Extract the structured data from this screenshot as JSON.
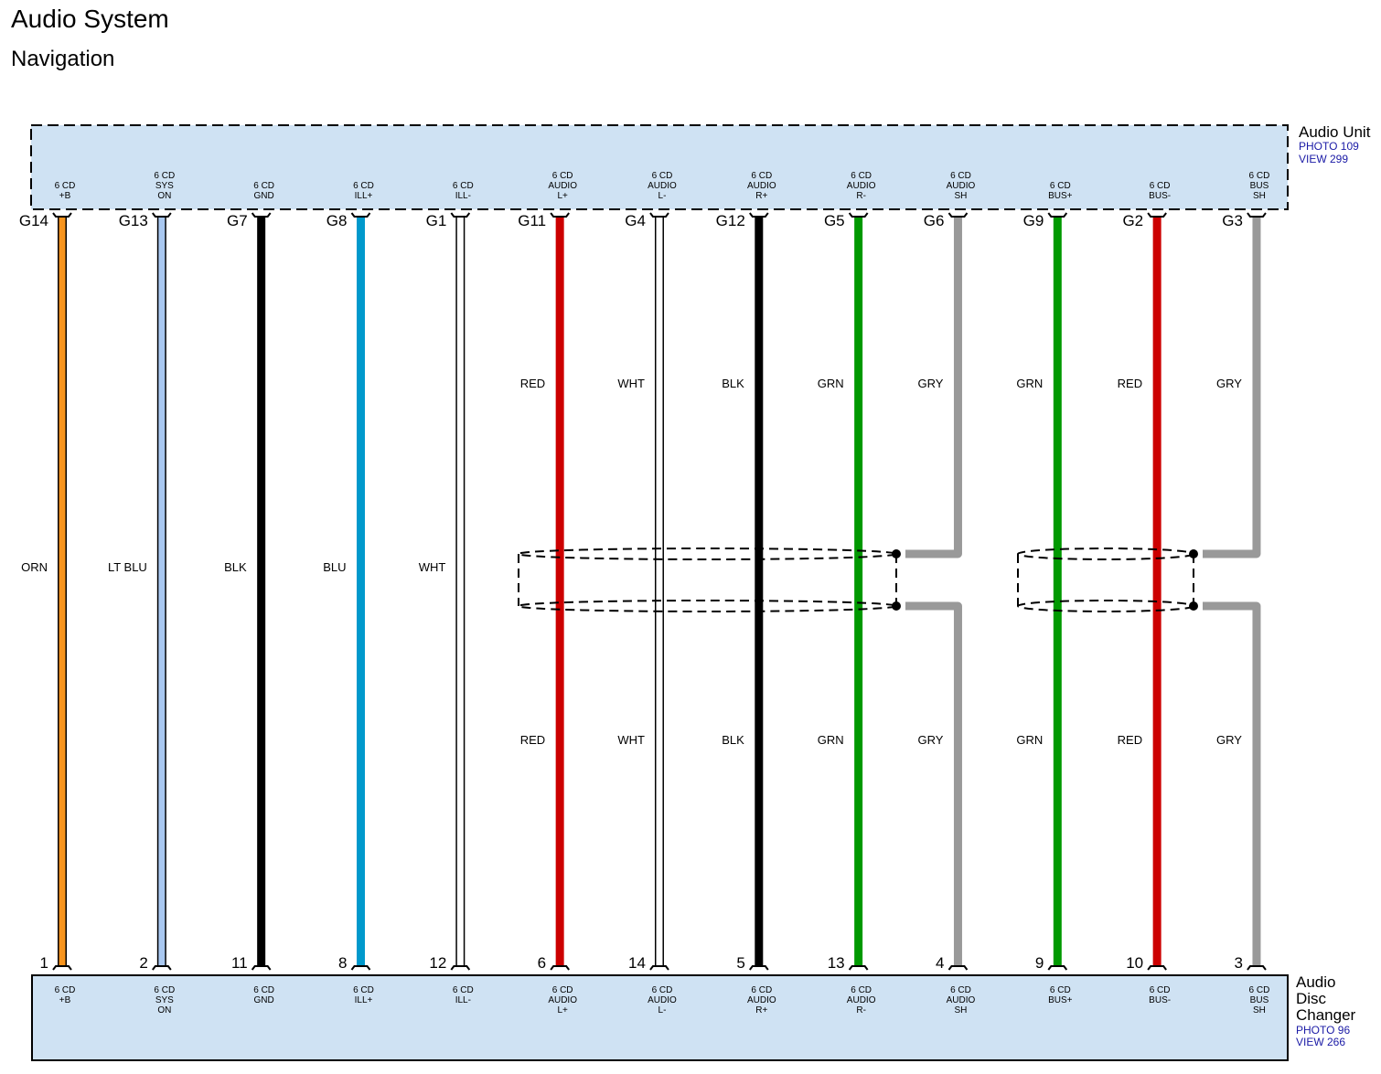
{
  "header": {
    "title": "Audio System",
    "subtitle": "Navigation"
  },
  "top_component": {
    "name": "Audio Unit",
    "photo": "PHOTO 109",
    "view": "VIEW 299"
  },
  "bottom_component": {
    "name": [
      "Audio",
      "Disc",
      "Changer"
    ],
    "photo": "PHOTO 96",
    "view": "VIEW 266"
  },
  "wires": [
    {
      "top_pin": "G14",
      "top_function": [
        "6 CD",
        "+B"
      ],
      "bottom_pin": "1",
      "bottom_function": [
        "6 CD",
        "+B"
      ],
      "colors": [
        "ORN"
      ],
      "stroke": "#f7941d"
    },
    {
      "top_pin": "G13",
      "top_function": [
        "6 CD",
        "SYS",
        "ON"
      ],
      "bottom_pin": "2",
      "bottom_function": [
        "6 CD",
        "SYS",
        "ON"
      ],
      "colors": [
        "LT BLU"
      ],
      "stroke": "#a9c8f0"
    },
    {
      "top_pin": "G7",
      "top_function": [
        "6 CD",
        "GND"
      ],
      "bottom_pin": "11",
      "bottom_function": [
        "6 CD",
        "GND"
      ],
      "colors": [
        "BLK"
      ],
      "stroke": "#000000"
    },
    {
      "top_pin": "G8",
      "top_function": [
        "6 CD",
        "ILL+"
      ],
      "bottom_pin": "8",
      "bottom_function": [
        "6 CD",
        "ILL+"
      ],
      "colors": [
        "BLU"
      ],
      "stroke": "#0099cc"
    },
    {
      "top_pin": "G1",
      "top_function": [
        "6 CD",
        "ILL-"
      ],
      "bottom_pin": "12",
      "bottom_function": [
        "6 CD",
        "ILL-"
      ],
      "colors": [
        "WHT"
      ],
      "stroke": "#ffffff"
    },
    {
      "top_pin": "G11",
      "top_function": [
        "6 CD",
        "AUDIO",
        "L+"
      ],
      "bottom_pin": "6",
      "bottom_function": [
        "6 CD",
        "AUDIO",
        "L+"
      ],
      "colors": [
        "RED",
        "RED"
      ],
      "stroke": "#cc0000"
    },
    {
      "top_pin": "G4",
      "top_function": [
        "6 CD",
        "AUDIO",
        "L-"
      ],
      "bottom_pin": "14",
      "bottom_function": [
        "6 CD",
        "AUDIO",
        "L-"
      ],
      "colors": [
        "WHT",
        "WHT"
      ],
      "stroke": "#ffffff"
    },
    {
      "top_pin": "G12",
      "top_function": [
        "6 CD",
        "AUDIO",
        "R+"
      ],
      "bottom_pin": "5",
      "bottom_function": [
        "6 CD",
        "AUDIO",
        "R+"
      ],
      "colors": [
        "BLK",
        "BLK"
      ],
      "stroke": "#000000"
    },
    {
      "top_pin": "G5",
      "top_function": [
        "6 CD",
        "AUDIO",
        "R-"
      ],
      "bottom_pin": "13",
      "bottom_function": [
        "6 CD",
        "AUDIO",
        "R-"
      ],
      "colors": [
        "GRN",
        "GRN"
      ],
      "stroke": "#009900"
    },
    {
      "top_pin": "G6",
      "top_function": [
        "6 CD",
        "AUDIO",
        "SH"
      ],
      "bottom_pin": "4",
      "bottom_function": [
        "6 CD",
        "AUDIO",
        "SH"
      ],
      "colors": [
        "GRY",
        "GRY"
      ],
      "stroke": "#999999"
    },
    {
      "top_pin": "G9",
      "top_function": [
        "6 CD",
        "BUS+"
      ],
      "bottom_pin": "9",
      "bottom_function": [
        "6 CD",
        "BUS+"
      ],
      "colors": [
        "GRN",
        "GRN"
      ],
      "stroke": "#009900"
    },
    {
      "top_pin": "G2",
      "top_function": [
        "6 CD",
        "BUS-"
      ],
      "bottom_pin": "10",
      "bottom_function": [
        "6 CD",
        "BUS-"
      ],
      "colors": [
        "RED",
        "RED"
      ],
      "stroke": "#cc0000"
    },
    {
      "top_pin": "G3",
      "top_function": [
        "6 CD",
        "BUS",
        "SH"
      ],
      "bottom_pin": "3",
      "bottom_function": [
        "6 CD",
        "BUS",
        "SH"
      ],
      "colors": [
        "GRY",
        "GRY"
      ],
      "stroke": "#999999"
    }
  ]
}
